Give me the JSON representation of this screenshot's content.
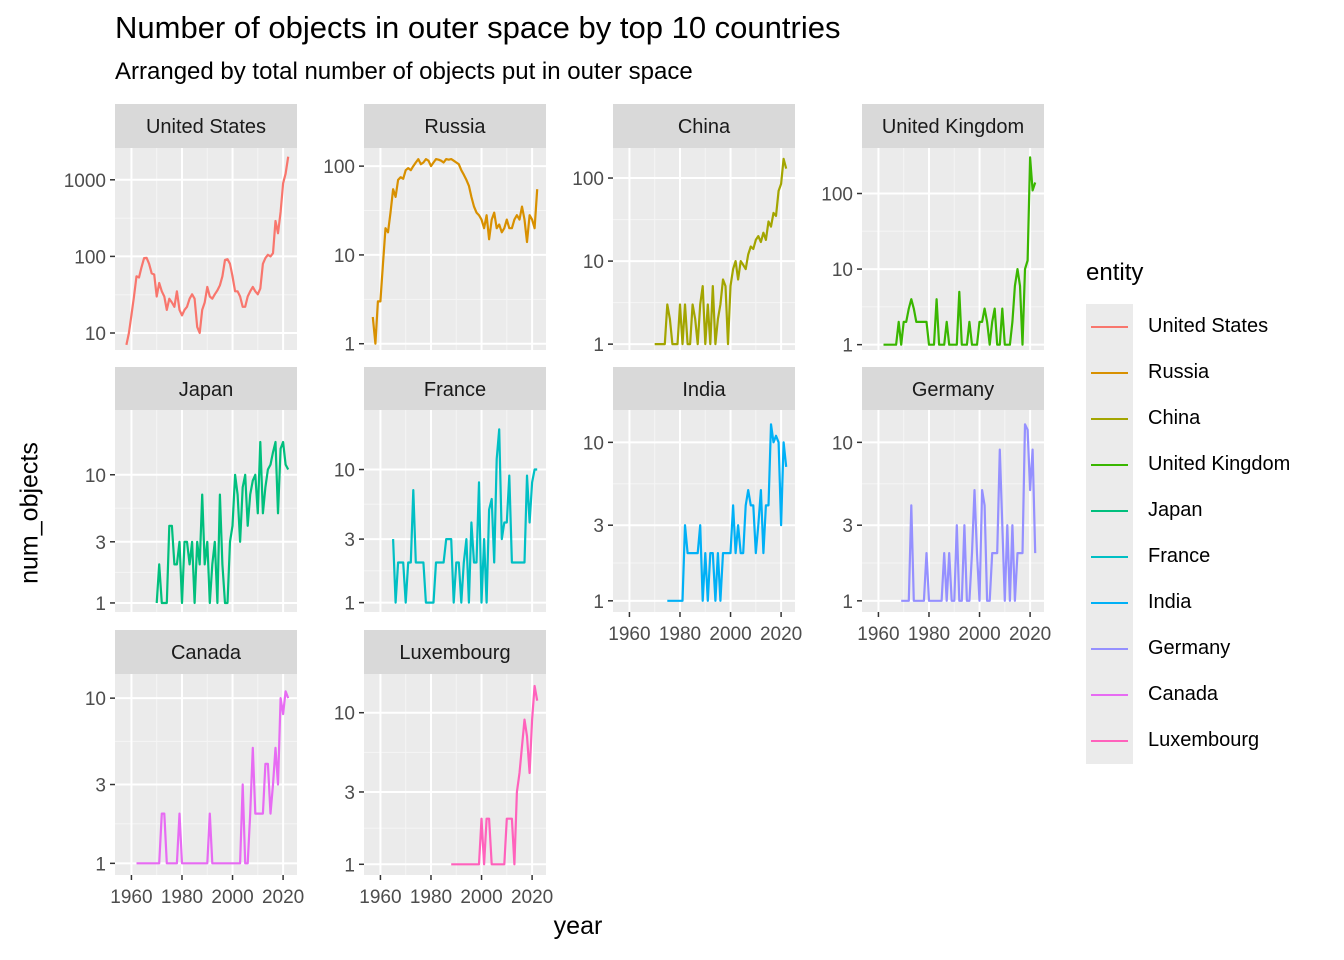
{
  "chart_data": {
    "type": "line",
    "title": "Number of objects in outer space by top 10 countries",
    "subtitle": "Arranged by total number of objects put in outer space",
    "xlabel": "year",
    "ylabel": "num_objects",
    "y_scale": "log10",
    "grid": true,
    "legend_title": "entity",
    "legend_position": "right",
    "x_ticks": [
      1960,
      1980,
      2000,
      2020
    ],
    "series": [
      {
        "name": "United States",
        "color": "#F8766D",
        "ylim": [
          6,
          2600
        ],
        "y_ticks": [
          10,
          100,
          1000
        ],
        "x": [
          1958,
          1959,
          1960,
          1961,
          1962,
          1963,
          1964,
          1965,
          1966,
          1967,
          1968,
          1969,
          1970,
          1971,
          1972,
          1973,
          1974,
          1975,
          1976,
          1977,
          1978,
          1979,
          1980,
          1981,
          1982,
          1983,
          1984,
          1985,
          1986,
          1987,
          1988,
          1989,
          1990,
          1991,
          1992,
          1993,
          1994,
          1995,
          1996,
          1997,
          1998,
          1999,
          2000,
          2001,
          2002,
          2003,
          2004,
          2005,
          2006,
          2007,
          2008,
          2009,
          2010,
          2011,
          2012,
          2013,
          2014,
          2015,
          2016,
          2017,
          2018,
          2019,
          2020,
          2021,
          2022
        ],
        "values": [
          7,
          10,
          17,
          30,
          55,
          53,
          72,
          95,
          96,
          80,
          60,
          58,
          30,
          45,
          35,
          30,
          20,
          28,
          25,
          22,
          35,
          20,
          17,
          20,
          22,
          28,
          32,
          28,
          12,
          10,
          20,
          25,
          40,
          30,
          28,
          32,
          36,
          42,
          55,
          90,
          92,
          80,
          55,
          35,
          35,
          30,
          22,
          22,
          30,
          35,
          40,
          35,
          32,
          38,
          80,
          95,
          105,
          100,
          110,
          290,
          200,
          380,
          900,
          1200,
          2000
        ]
      },
      {
        "name": "Russia",
        "color": "#D89000",
        "ylim": [
          0.85,
          160
        ],
        "y_ticks": [
          1,
          10,
          100
        ],
        "x": [
          1957,
          1958,
          1959,
          1960,
          1961,
          1962,
          1963,
          1964,
          1965,
          1966,
          1967,
          1968,
          1969,
          1970,
          1971,
          1972,
          1973,
          1974,
          1975,
          1976,
          1977,
          1978,
          1979,
          1980,
          1981,
          1982,
          1983,
          1984,
          1985,
          1986,
          1987,
          1988,
          1989,
          1990,
          1991,
          1992,
          1993,
          1994,
          1995,
          1996,
          1997,
          1998,
          1999,
          2000,
          2001,
          2002,
          2003,
          2004,
          2005,
          2006,
          2007,
          2008,
          2009,
          2010,
          2011,
          2012,
          2013,
          2014,
          2015,
          2016,
          2017,
          2018,
          2019,
          2020,
          2021,
          2022
        ],
        "values": [
          2,
          1,
          3,
          3,
          8,
          20,
          18,
          30,
          55,
          45,
          70,
          75,
          72,
          90,
          95,
          90,
          100,
          110,
          120,
          105,
          110,
          120,
          115,
          100,
          110,
          120,
          118,
          115,
          110,
          120,
          118,
          120,
          115,
          110,
          105,
          90,
          80,
          70,
          60,
          45,
          35,
          30,
          28,
          25,
          20,
          28,
          15,
          25,
          30,
          20,
          22,
          18,
          20,
          25,
          20,
          20,
          25,
          28,
          25,
          35,
          25,
          14,
          28,
          25,
          20,
          55
        ]
      },
      {
        "name": "China",
        "color": "#A3A500",
        "ylim": [
          0.85,
          230
        ],
        "y_ticks": [
          1,
          10,
          100
        ],
        "x": [
          1970,
          1971,
          1972,
          1973,
          1974,
          1975,
          1976,
          1977,
          1978,
          1979,
          1980,
          1981,
          1982,
          1983,
          1984,
          1985,
          1986,
          1987,
          1988,
          1989,
          1990,
          1991,
          1992,
          1993,
          1994,
          1995,
          1996,
          1997,
          1998,
          1999,
          2000,
          2001,
          2002,
          2003,
          2004,
          2005,
          2006,
          2007,
          2008,
          2009,
          2010,
          2011,
          2012,
          2013,
          2014,
          2015,
          2016,
          2017,
          2018,
          2019,
          2020,
          2021,
          2022
        ],
        "values": [
          1,
          1,
          1,
          1,
          1,
          3,
          2,
          1,
          1,
          1,
          3,
          1,
          3,
          1,
          1,
          3,
          2,
          1,
          3,
          5,
          1,
          3,
          1,
          5,
          1,
          2,
          3,
          6,
          5,
          1,
          5,
          8,
          10,
          6,
          10,
          9,
          8,
          12,
          15,
          14,
          18,
          20,
          17,
          22,
          18,
          30,
          26,
          38,
          35,
          70,
          85,
          170,
          130
        ]
      },
      {
        "name": "United Kingdom",
        "color": "#39B600",
        "ylim": [
          0.85,
          400
        ],
        "y_ticks": [
          1,
          10,
          100
        ],
        "x": [
          1962,
          1963,
          1964,
          1965,
          1966,
          1967,
          1968,
          1969,
          1970,
          1971,
          1972,
          1973,
          1974,
          1975,
          1976,
          1977,
          1978,
          1979,
          1980,
          1981,
          1982,
          1983,
          1984,
          1985,
          1986,
          1987,
          1988,
          1989,
          1990,
          1991,
          1992,
          1993,
          1994,
          1995,
          1996,
          1997,
          1998,
          1999,
          2000,
          2001,
          2002,
          2003,
          2004,
          2005,
          2006,
          2007,
          2008,
          2009,
          2010,
          2011,
          2012,
          2013,
          2014,
          2015,
          2016,
          2017,
          2018,
          2019,
          2020,
          2021,
          2022
        ],
        "values": [
          1,
          1,
          1,
          1,
          1,
          1,
          2,
          1,
          2,
          2,
          3,
          4,
          3,
          2,
          2,
          2,
          2,
          2,
          1,
          1,
          1,
          4,
          1,
          1,
          1,
          2,
          1,
          1,
          1,
          1,
          5,
          1,
          1,
          1,
          2,
          1,
          1,
          1,
          2,
          2,
          3,
          2,
          1,
          2,
          3,
          1,
          1,
          3,
          1,
          1,
          1,
          2,
          6,
          10,
          6,
          1,
          10,
          13,
          300,
          110,
          140
        ]
      },
      {
        "name": "Japan",
        "color": "#00BF7D",
        "ylim": [
          0.85,
          32
        ],
        "y_ticks": [
          1,
          3,
          10
        ],
        "x": [
          1970,
          1971,
          1972,
          1973,
          1974,
          1975,
          1976,
          1977,
          1978,
          1979,
          1980,
          1981,
          1982,
          1983,
          1984,
          1985,
          1986,
          1987,
          1988,
          1989,
          1990,
          1991,
          1992,
          1993,
          1994,
          1995,
          1996,
          1997,
          1998,
          1999,
          2000,
          2001,
          2002,
          2003,
          2004,
          2005,
          2006,
          2007,
          2008,
          2009,
          2010,
          2011,
          2012,
          2013,
          2014,
          2015,
          2016,
          2017,
          2018,
          2019,
          2020,
          2021,
          2022
        ],
        "values": [
          1,
          2,
          1,
          1,
          1,
          4,
          4,
          2,
          2,
          3,
          1,
          3,
          3,
          2,
          3,
          1,
          3,
          2,
          7,
          2,
          3,
          1,
          2,
          3,
          1,
          7,
          2,
          1,
          1,
          3,
          4,
          10,
          7,
          3,
          8,
          10,
          4,
          7,
          9,
          10,
          5,
          18,
          5,
          8,
          11,
          12,
          15,
          18,
          5,
          16,
          18,
          12,
          11
        ]
      },
      {
        "name": "France",
        "color": "#00BFC4",
        "ylim": [
          0.85,
          28
        ],
        "y_ticks": [
          1,
          3,
          10
        ],
        "x": [
          1965,
          1966,
          1967,
          1968,
          1969,
          1970,
          1971,
          1972,
          1973,
          1974,
          1975,
          1976,
          1977,
          1978,
          1979,
          1980,
          1981,
          1982,
          1983,
          1984,
          1985,
          1986,
          1987,
          1988,
          1989,
          1990,
          1991,
          1992,
          1993,
          1994,
          1995,
          1996,
          1997,
          1998,
          1999,
          2000,
          2001,
          2002,
          2003,
          2004,
          2005,
          2006,
          2007,
          2008,
          2009,
          2010,
          2011,
          2012,
          2013,
          2014,
          2015,
          2016,
          2017,
          2018,
          2019,
          2020,
          2021,
          2022
        ],
        "values": [
          3,
          1,
          2,
          2,
          2,
          1,
          2,
          2,
          7,
          2,
          2,
          2,
          2,
          1,
          1,
          1,
          1,
          2,
          2,
          2,
          2,
          3,
          3,
          3,
          1,
          2,
          2,
          1,
          2,
          3,
          1,
          4,
          2,
          2,
          8,
          1,
          3,
          1,
          5,
          6,
          2,
          12,
          20,
          3,
          4,
          4,
          9,
          2,
          2,
          2,
          2,
          2,
          2,
          9,
          4,
          8,
          10,
          10
        ]
      },
      {
        "name": "India",
        "color": "#00B0F6",
        "ylim": [
          0.85,
          16
        ],
        "y_ticks": [
          1,
          3,
          10
        ],
        "x": [
          1975,
          1976,
          1977,
          1978,
          1979,
          1980,
          1981,
          1982,
          1983,
          1984,
          1985,
          1986,
          1987,
          1988,
          1989,
          1990,
          1991,
          1992,
          1993,
          1994,
          1995,
          1996,
          1997,
          1998,
          1999,
          2000,
          2001,
          2002,
          2003,
          2004,
          2005,
          2006,
          2007,
          2008,
          2009,
          2010,
          2011,
          2012,
          2013,
          2014,
          2015,
          2016,
          2017,
          2018,
          2019,
          2020,
          2021,
          2022
        ],
        "values": [
          1,
          1,
          1,
          1,
          1,
          1,
          1,
          3,
          2,
          2,
          2,
          2,
          2,
          3,
          1,
          2,
          1,
          2,
          2,
          1,
          2,
          1,
          2,
          2,
          2,
          2,
          4,
          2,
          3,
          2,
          2,
          4,
          5,
          4,
          4,
          2,
          3,
          5,
          2,
          4,
          4,
          13,
          10,
          11,
          10,
          3,
          10,
          7
        ]
      },
      {
        "name": "Germany",
        "color": "#9590FF",
        "ylim": [
          0.85,
          16
        ],
        "y_ticks": [
          1,
          3,
          10
        ],
        "x": [
          1969,
          1970,
          1971,
          1972,
          1973,
          1974,
          1975,
          1976,
          1977,
          1978,
          1979,
          1980,
          1981,
          1982,
          1983,
          1984,
          1985,
          1986,
          1987,
          1988,
          1989,
          1990,
          1991,
          1992,
          1993,
          1994,
          1995,
          1996,
          1997,
          1998,
          1999,
          2000,
          2001,
          2002,
          2003,
          2004,
          2005,
          2006,
          2007,
          2008,
          2009,
          2010,
          2011,
          2012,
          2013,
          2014,
          2015,
          2016,
          2017,
          2018,
          2019,
          2020,
          2021,
          2022
        ],
        "values": [
          1,
          1,
          1,
          1,
          4,
          1,
          1,
          1,
          1,
          1,
          2,
          1,
          1,
          1,
          1,
          1,
          1,
          2,
          1,
          2,
          1,
          1,
          3,
          1,
          1,
          3,
          1,
          1,
          2,
          5,
          2,
          1,
          5,
          4,
          1,
          1,
          2,
          2,
          2,
          9,
          3,
          1,
          3,
          1,
          3,
          1,
          2,
          2,
          2,
          13,
          12,
          5,
          9,
          2
        ]
      },
      {
        "name": "Canada",
        "color": "#E76BF3",
        "ylim": [
          0.85,
          14
        ],
        "y_ticks": [
          1,
          3,
          10
        ],
        "x": [
          1962,
          1963,
          1964,
          1965,
          1966,
          1967,
          1968,
          1969,
          1970,
          1971,
          1972,
          1973,
          1974,
          1975,
          1976,
          1977,
          1978,
          1979,
          1980,
          1981,
          1982,
          1983,
          1984,
          1985,
          1986,
          1987,
          1988,
          1989,
          1990,
          1991,
          1992,
          1993,
          1994,
          1995,
          1996,
          1997,
          1998,
          1999,
          2000,
          2001,
          2002,
          2003,
          2004,
          2005,
          2006,
          2007,
          2008,
          2009,
          2010,
          2011,
          2012,
          2013,
          2014,
          2015,
          2016,
          2017,
          2018,
          2019,
          2020,
          2021,
          2022
        ],
        "values": [
          1,
          1,
          1,
          1,
          1,
          1,
          1,
          1,
          1,
          1,
          2,
          2,
          1,
          1,
          1,
          1,
          1,
          2,
          1,
          1,
          1,
          1,
          1,
          1,
          1,
          1,
          1,
          1,
          1,
          2,
          1,
          1,
          1,
          1,
          1,
          1,
          1,
          1,
          1,
          1,
          1,
          1,
          3,
          1,
          1,
          2,
          5,
          2,
          2,
          2,
          2,
          4,
          4,
          2,
          3,
          5,
          3,
          10,
          8,
          11,
          10
        ]
      },
      {
        "name": "Luxembourg",
        "color": "#FF62BC",
        "ylim": [
          0.85,
          18
        ],
        "y_ticks": [
          1,
          3,
          10
        ],
        "x": [
          1988,
          1989,
          1990,
          1991,
          1992,
          1993,
          1994,
          1995,
          1996,
          1997,
          1998,
          1999,
          2000,
          2001,
          2002,
          2003,
          2004,
          2005,
          2006,
          2007,
          2008,
          2009,
          2010,
          2011,
          2012,
          2013,
          2014,
          2015,
          2016,
          2017,
          2018,
          2019,
          2020,
          2021,
          2022
        ],
        "values": [
          1,
          1,
          1,
          1,
          1,
          1,
          1,
          1,
          1,
          1,
          1,
          1,
          2,
          1,
          2,
          2,
          1,
          1,
          1,
          1,
          1,
          1,
          2,
          2,
          2,
          1,
          3,
          4,
          6,
          9,
          7,
          4,
          9,
          15,
          12
        ]
      }
    ]
  }
}
